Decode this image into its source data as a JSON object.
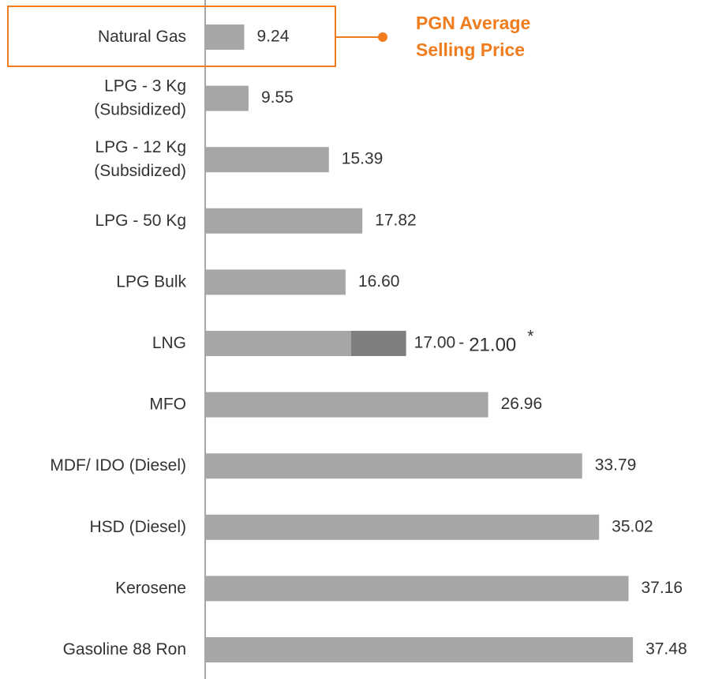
{
  "chart_data": {
    "type": "hbar",
    "categories": [
      "Natural Gas",
      "LPG - 3 Kg\n(Subsidized)",
      "LPG - 12  Kg\n(Subsidized)",
      "LPG - 50 Kg",
      "LPG Bulk",
      "LNG",
      "MFO",
      "MDF/ IDO (Diesel)",
      "HSD (Diesel)",
      "Kerosene",
      "Gasoline 88 Ron"
    ],
    "values": [
      9.24,
      9.55,
      15.39,
      17.82,
      16.6,
      17,
      26.96,
      33.79,
      35.02,
      37.16,
      37.48
    ],
    "value_labels": [
      "9.24",
      "9.55",
      "15.39",
      "17.82",
      "16.60",
      "17.00",
      "26.96",
      "33.79",
      "35.02",
      "37.16",
      "37.48"
    ],
    "highs": [
      null,
      null,
      null,
      null,
      null,
      21,
      null,
      null,
      null,
      null,
      null
    ],
    "high_labels": [
      null,
      null,
      null,
      null,
      null,
      "21.00",
      null,
      null,
      null,
      null,
      null
    ],
    "range_separator": "-",
    "footnote_mark": "*",
    "color": "#a6a6a6",
    "range_color": "#7f7f7f",
    "xlim": [
      6.4,
      40.8
    ],
    "annotation": "PGN Average\nSelling Price",
    "annotation_color": "#f07c1e"
  }
}
